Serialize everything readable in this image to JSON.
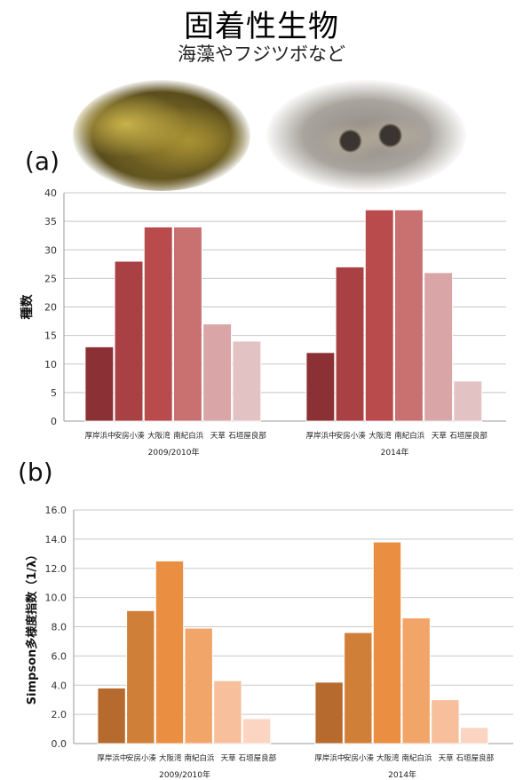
{
  "header": {
    "title": "固着性生物",
    "subtitle": "海藻やフジツボなど"
  },
  "photos": {
    "left_icon": "seaweed-photo",
    "right_icon": "barnacle-photo"
  },
  "chart_data": [
    {
      "panel_label": "(a)",
      "type": "bar",
      "ylabel": "種数",
      "ylim": [
        0,
        40
      ],
      "yticks": [
        "0",
        "5",
        "10",
        "15",
        "20",
        "25",
        "30",
        "35",
        "40"
      ],
      "ytick_values": [
        0,
        5,
        10,
        15,
        20,
        25,
        30,
        35,
        40
      ],
      "grid": true,
      "categories": [
        "厚岸浜中",
        "安房小湊",
        "大阪湾",
        "南紀白浜",
        "天草",
        "石垣屋良部"
      ],
      "colors": [
        "#8b3035",
        "#a84044",
        "#b94b4d",
        "#c97070",
        "#d9a5a6",
        "#e2c2c3"
      ],
      "groups": [
        {
          "label": "2009/2010年",
          "values": [
            13,
            28,
            34,
            34,
            17,
            14
          ]
        },
        {
          "label": "2014年",
          "values": [
            12,
            27,
            37,
            37,
            26,
            7
          ]
        }
      ]
    },
    {
      "panel_label": "(b)",
      "type": "bar",
      "ylabel": "Simpson多様度指数（1/λ）",
      "ylim": [
        0,
        16
      ],
      "yticks": [
        "0.0",
        "2.0",
        "4.0",
        "6.0",
        "8.0",
        "10.0",
        "12.0",
        "14.0",
        "16.0"
      ],
      "ytick_values": [
        0,
        2,
        4,
        6,
        8,
        10,
        12,
        14,
        16
      ],
      "grid": true,
      "categories": [
        "厚岸浜中",
        "安房小湊",
        "大阪湾",
        "南紀白浜",
        "天草",
        "石垣屋良部"
      ],
      "colors": [
        "#b76a2e",
        "#d07f38",
        "#ea8e42",
        "#f2a569",
        "#f7bf9b",
        "#fbd5c2"
      ],
      "groups": [
        {
          "label": "2009/2010年",
          "values": [
            3.8,
            9.1,
            12.5,
            7.9,
            4.3,
            1.7
          ]
        },
        {
          "label": "2014年",
          "values": [
            4.2,
            7.6,
            13.8,
            8.6,
            3.0,
            1.1
          ]
        }
      ]
    }
  ]
}
